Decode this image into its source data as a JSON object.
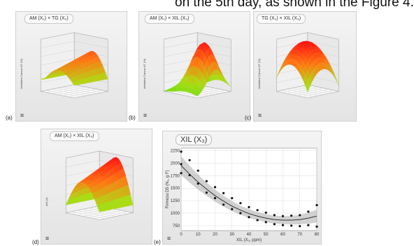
{
  "header_text": "on the 5th day, as shown in the Figure 4.",
  "panels": [
    {
      "title": "AM (X₁) × TG (X₂)",
      "label": "(a)",
      "ylabel": "Inhibition Cancer AT (%)",
      "shape": "ridge"
    },
    {
      "title": "AM (X₁) × XIL (X₃)",
      "label": "(b)",
      "ylabel": "Inhibition Cancer AT (%)",
      "shape": "peak"
    },
    {
      "title": "TG (X₂) × XIL (X₃)",
      "label": "(c)",
      "ylabel": "Inhibition Cancer AT (%)",
      "shape": "dome"
    },
    {
      "title": "AM (X₁) × XIL (X₃)",
      "label": "(d)",
      "ylabel": "aW (aᵢ)",
      "shape": "arch"
    }
  ],
  "menu_icon": "hamburger-menu-icon",
  "chart_data": {
    "type": "scatter",
    "title": "XIL (X₃)",
    "label": "(e)",
    "xlabel": "XIL (X₃, ppm)",
    "ylabel": "Firmeza D5 (N₁, g F)",
    "xlim": [
      0,
      80
    ],
    "ylim": [
      650,
      2300
    ],
    "xticks": [
      0,
      10,
      20,
      30,
      40,
      50,
      60,
      70,
      80
    ],
    "yticks": [
      750,
      1000,
      1250,
      1500,
      1750,
      2000,
      2250
    ],
    "grid": true,
    "fit_line": {
      "x": [
        0,
        5,
        10,
        15,
        20,
        25,
        30,
        35,
        40,
        45,
        50,
        55,
        60,
        65,
        70,
        75,
        80
      ],
      "y": [
        1950,
        1780,
        1620,
        1480,
        1350,
        1240,
        1140,
        1060,
        990,
        940,
        900,
        870,
        860,
        860,
        870,
        900,
        940
      ]
    },
    "band_upper": [
      2140,
      1950,
      1770,
      1610,
      1470,
      1350,
      1240,
      1150,
      1080,
      1020,
      980,
      950,
      940,
      945,
      965,
      1010,
      1070
    ],
    "band_lower": [
      1760,
      1610,
      1470,
      1350,
      1230,
      1130,
      1040,
      970,
      900,
      860,
      820,
      790,
      780,
      775,
      775,
      790,
      810
    ],
    "points": [
      {
        "x": 0,
        "y": 2230
      },
      {
        "x": 0,
        "y": 1980
      },
      {
        "x": 0,
        "y": 1800
      },
      {
        "x": 5,
        "y": 2060
      },
      {
        "x": 5,
        "y": 1760
      },
      {
        "x": 10,
        "y": 1850
      },
      {
        "x": 10,
        "y": 1590
      },
      {
        "x": 15,
        "y": 1640
      },
      {
        "x": 15,
        "y": 1410
      },
      {
        "x": 20,
        "y": 1520
      },
      {
        "x": 20,
        "y": 1300
      },
      {
        "x": 25,
        "y": 1400
      },
      {
        "x": 25,
        "y": 1170
      },
      {
        "x": 30,
        "y": 1300
      },
      {
        "x": 30,
        "y": 1080
      },
      {
        "x": 35,
        "y": 1200
      },
      {
        "x": 35,
        "y": 1000
      },
      {
        "x": 40,
        "y": 1120
      },
      {
        "x": 40,
        "y": 920
      },
      {
        "x": 45,
        "y": 1060
      },
      {
        "x": 45,
        "y": 860
      },
      {
        "x": 50,
        "y": 1010
      },
      {
        "x": 50,
        "y": 820
      },
      {
        "x": 55,
        "y": 960
      },
      {
        "x": 55,
        "y": 780
      },
      {
        "x": 60,
        "y": 940
      },
      {
        "x": 60,
        "y": 760
      },
      {
        "x": 65,
        "y": 950
      },
      {
        "x": 65,
        "y": 750
      },
      {
        "x": 70,
        "y": 960
      },
      {
        "x": 70,
        "y": 740
      },
      {
        "x": 75,
        "y": 1030
      },
      {
        "x": 75,
        "y": 760
      },
      {
        "x": 80,
        "y": 1160
      },
      {
        "x": 80,
        "y": 730
      }
    ]
  }
}
